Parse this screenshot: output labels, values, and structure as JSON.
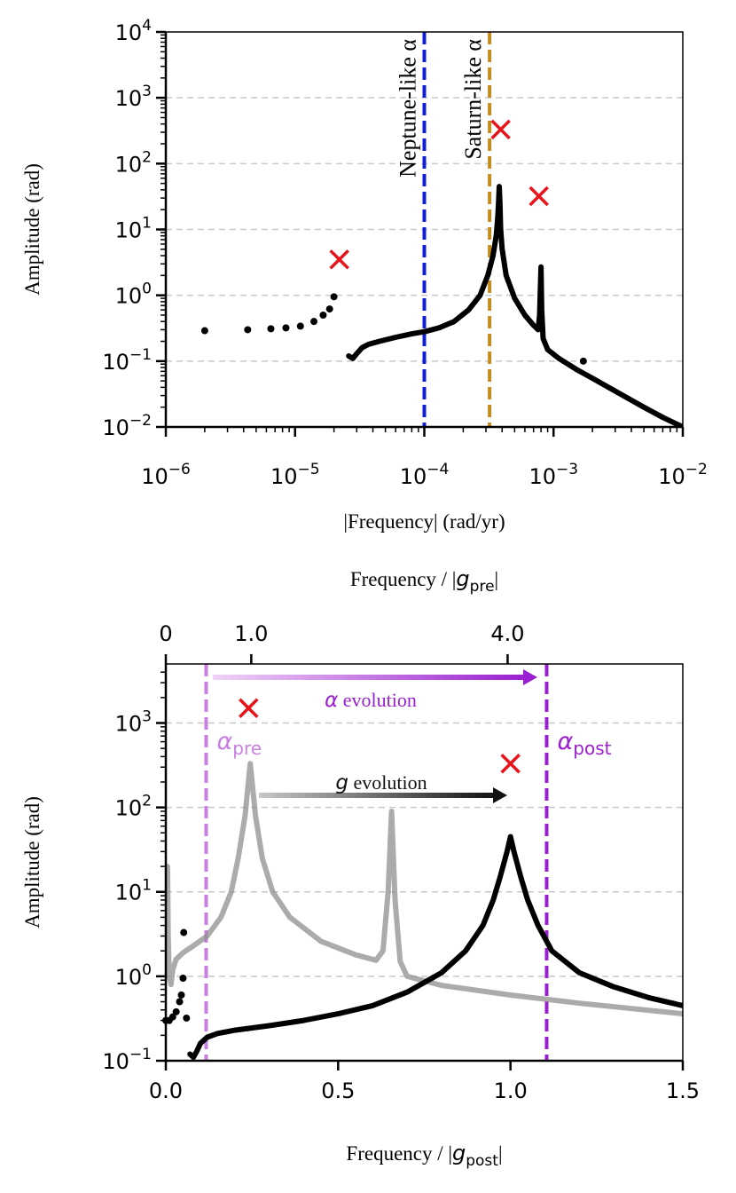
{
  "chart_data": [
    {
      "type": "line",
      "xlabel": "|Frequency| (rad/yr)",
      "ylabel": "Amplitude (rad)",
      "xscale": "log",
      "yscale": "log",
      "grid": true,
      "xlim": [
        1e-06,
        0.01
      ],
      "ylim": [
        0.01,
        10000
      ],
      "xticks": [
        {
          "value": 1e-06,
          "label": "10",
          "sup": "−6"
        },
        {
          "value": 1e-05,
          "label": "10",
          "sup": "−5"
        },
        {
          "value": 0.0001,
          "label": "10",
          "sup": "−4"
        },
        {
          "value": 0.001,
          "label": "10",
          "sup": "−3"
        },
        {
          "value": 0.01,
          "label": "10",
          "sup": "−2"
        }
      ],
      "yticks": [
        {
          "value": 0.01,
          "label": "10",
          "sup": "−2"
        },
        {
          "value": 0.1,
          "label": "10",
          "sup": "−1"
        },
        {
          "value": 1,
          "label": "10",
          "sup": "0"
        },
        {
          "value": 10,
          "label": "10",
          "sup": "1"
        },
        {
          "value": 100,
          "label": "10",
          "sup": "2"
        },
        {
          "value": 1000,
          "label": "10",
          "sup": "3"
        },
        {
          "value": 10000,
          "label": "10",
          "sup": "4"
        }
      ],
      "vlines": [
        {
          "x": 0.0001,
          "color": "#0f1fd8",
          "label": "Neptune-like α"
        },
        {
          "x": 0.00032,
          "color": "#c28d1a",
          "label": "Saturn-like α"
        }
      ],
      "series": [
        {
          "marker": "dot",
          "color": "#000000",
          "x": [
            2e-06,
            4.3e-06,
            6.5e-06,
            8.5e-06,
            1.1e-05,
            1.4e-05,
            1.65e-05,
            1.85e-05,
            2e-05,
            0.0017
          ],
          "values": [
            0.29,
            0.3,
            0.31,
            0.32,
            0.34,
            0.4,
            0.5,
            0.62,
            0.95,
            0.1
          ]
        },
        {
          "marker": "line",
          "color": "#000000",
          "x": [
            2.6e-05,
            2.8e-05,
            3e-05,
            3.3e-05,
            3.7e-05,
            4.5e-05,
            6e-05,
            8e-05,
            0.0001,
            0.00013,
            0.00017,
            0.00022,
            0.00027,
            0.00031,
            0.00034,
            0.00036,
            0.00037,
            0.000375,
            0.00038,
            0.000385,
            0.00039,
            0.0004,
            0.00043,
            0.0005,
            0.0006,
            0.0007,
            0.00076,
            0.00078,
            0.00079,
            0.0008,
            0.00081,
            0.00083,
            0.0009,
            0.0011,
            0.0015,
            0.002,
            0.003,
            0.005,
            0.007,
            0.01
          ],
          "values": [
            0.12,
            0.11,
            0.13,
            0.16,
            0.18,
            0.2,
            0.23,
            0.26,
            0.28,
            0.32,
            0.4,
            0.6,
            1.0,
            2,
            4,
            8,
            15,
            25,
            45,
            25,
            10,
            5,
            2,
            0.9,
            0.5,
            0.35,
            0.3,
            0.5,
            1.2,
            2.7,
            0.6,
            0.22,
            0.15,
            0.11,
            0.075,
            0.055,
            0.035,
            0.02,
            0.014,
            0.01
          ]
        },
        {
          "marker": "x",
          "color": "#e8141c",
          "x": [
            2.2e-05,
            0.00039,
            0.00077
          ],
          "values": [
            3.5,
            330,
            32
          ]
        }
      ]
    },
    {
      "type": "line",
      "xlabel": [
        "Frequency / |",
        "g",
        "post",
        "|"
      ],
      "ylabel": "Amplitude (rad)",
      "x2label": [
        "Frequency / |",
        "g",
        "pre",
        "|"
      ],
      "xscale": "linear",
      "yscale": "log",
      "grid": true,
      "xlim": [
        0,
        1.5
      ],
      "ylim": [
        0.1,
        5000
      ],
      "x2lim": [
        0,
        6.05
      ],
      "xticks": [
        {
          "value": 0,
          "label": "0.0"
        },
        0.5,
        {
          "value": 1,
          "label": "1.0"
        },
        1.5
      ],
      "x2ticks": [
        0,
        {
          "value": 1,
          "label": "1.0"
        },
        {
          "value": 4,
          "label": "4.0"
        }
      ],
      "yticks": [
        {
          "value": 0.1,
          "label": "10",
          "sup": "−1"
        },
        {
          "value": 1,
          "label": "10",
          "sup": "0"
        },
        {
          "value": 10,
          "label": "10",
          "sup": "1"
        },
        {
          "value": 100,
          "label": "10",
          "sup": "2"
        },
        {
          "value": 1000,
          "label": "10",
          "sup": "3"
        }
      ],
      "vlines": [
        {
          "x": 0.117,
          "color": "#c77fe0",
          "label": [
            "α",
            "pre"
          ]
        },
        {
          "x": 1.105,
          "color": "#9a1fd0",
          "label": [
            "α",
            "post"
          ]
        }
      ],
      "annotations": [
        [
          "α",
          " evolution"
        ],
        [
          "g",
          " evolution"
        ]
      ],
      "series": [
        {
          "marker": "line",
          "color": "#8f8f8f",
          "x": [
            0.005,
            0.007,
            0.01,
            0.015,
            0.02,
            0.03,
            0.05,
            0.08,
            0.12,
            0.16,
            0.19,
            0.21,
            0.23,
            0.245,
            0.26,
            0.28,
            0.31,
            0.36,
            0.45,
            0.55,
            0.61,
            0.63,
            0.645,
            0.655,
            0.665,
            0.68,
            0.7,
            0.8,
            1.0,
            1.2,
            1.5
          ],
          "values": [
            20,
            3,
            1.0,
            0.8,
            1.2,
            1.6,
            1.9,
            2.3,
            3,
            5,
            10,
            25,
            80,
            330,
            80,
            25,
            10,
            5,
            2.6,
            1.8,
            1.55,
            2,
            10,
            90,
            8,
            1.5,
            1.0,
            0.78,
            0.6,
            0.48,
            0.36
          ]
        },
        {
          "marker": "dot",
          "color": "#000000",
          "x": [
            0.0,
            0.01,
            0.02,
            0.03,
            0.04,
            0.045,
            0.05,
            0.052,
            0.06
          ],
          "values": [
            0.3,
            0.3,
            0.33,
            0.38,
            0.5,
            0.6,
            0.95,
            3.3,
            0.32
          ]
        },
        {
          "marker": "line",
          "color": "#000000",
          "x": [
            0.07,
            0.08,
            0.09,
            0.1,
            0.12,
            0.15,
            0.2,
            0.3,
            0.4,
            0.5,
            0.6,
            0.7,
            0.8,
            0.87,
            0.92,
            0.95,
            0.97,
            0.99,
            1.0,
            1.01,
            1.03,
            1.05,
            1.08,
            1.12,
            1.2,
            1.3,
            1.4,
            1.5
          ],
          "values": [
            0.12,
            0.11,
            0.13,
            0.16,
            0.19,
            0.21,
            0.23,
            0.26,
            0.3,
            0.36,
            0.45,
            0.65,
            1.1,
            2,
            4,
            8,
            15,
            30,
            45,
            30,
            15,
            8,
            4,
            2,
            1.1,
            0.75,
            0.56,
            0.45
          ]
        },
        {
          "marker": "x",
          "color": "#e8141c",
          "x": [
            0.24,
            1.0
          ],
          "values": [
            1500,
            330
          ]
        }
      ]
    }
  ]
}
